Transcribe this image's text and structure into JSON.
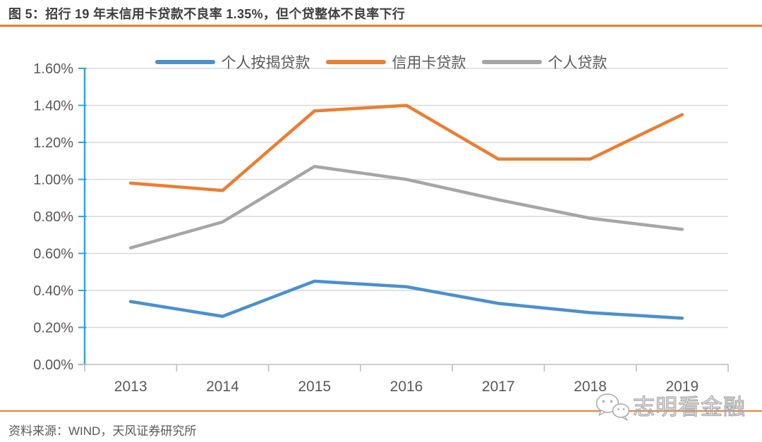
{
  "header": {
    "title": "图 5：招行 19 年末信用卡贷款不良率 1.35%，但个贷整体不良率下行"
  },
  "footer": {
    "source": "资料来源：WIND，天风证券研究所",
    "watermark": "志明看金融"
  },
  "colors": {
    "accent_rule": "#ED7D31",
    "axis_cyan": "#27A9E1",
    "grid": "#D9D9D9",
    "x_axis_line": "#BFBFBF",
    "text": "#595959",
    "title_text": "#3F3F3F",
    "watermark_gray": "#A8A8A8"
  },
  "chart_data": {
    "type": "line",
    "title": "",
    "xlabel": "",
    "ylabel": "",
    "categories": [
      "2013",
      "2014",
      "2015",
      "2016",
      "2017",
      "2018",
      "2019"
    ],
    "series": [
      {
        "name": "个人按揭贷款",
        "color": "#4A90D0",
        "values": [
          0.34,
          0.26,
          0.45,
          0.42,
          0.33,
          0.28,
          0.25
        ]
      },
      {
        "name": "信用卡贷款",
        "color": "#ED7D31",
        "values": [
          0.98,
          0.94,
          1.37,
          1.4,
          1.11,
          1.11,
          1.35
        ]
      },
      {
        "name": "个人贷款",
        "color": "#A6A6A6",
        "values": [
          0.63,
          0.77,
          1.07,
          1.0,
          0.89,
          0.79,
          0.73
        ]
      }
    ],
    "ylim": [
      0,
      1.6
    ],
    "ytick_step": 0.2,
    "ytick_decimals": 2,
    "ytick_suffix": "%",
    "grid": true,
    "legend_position": "top"
  }
}
